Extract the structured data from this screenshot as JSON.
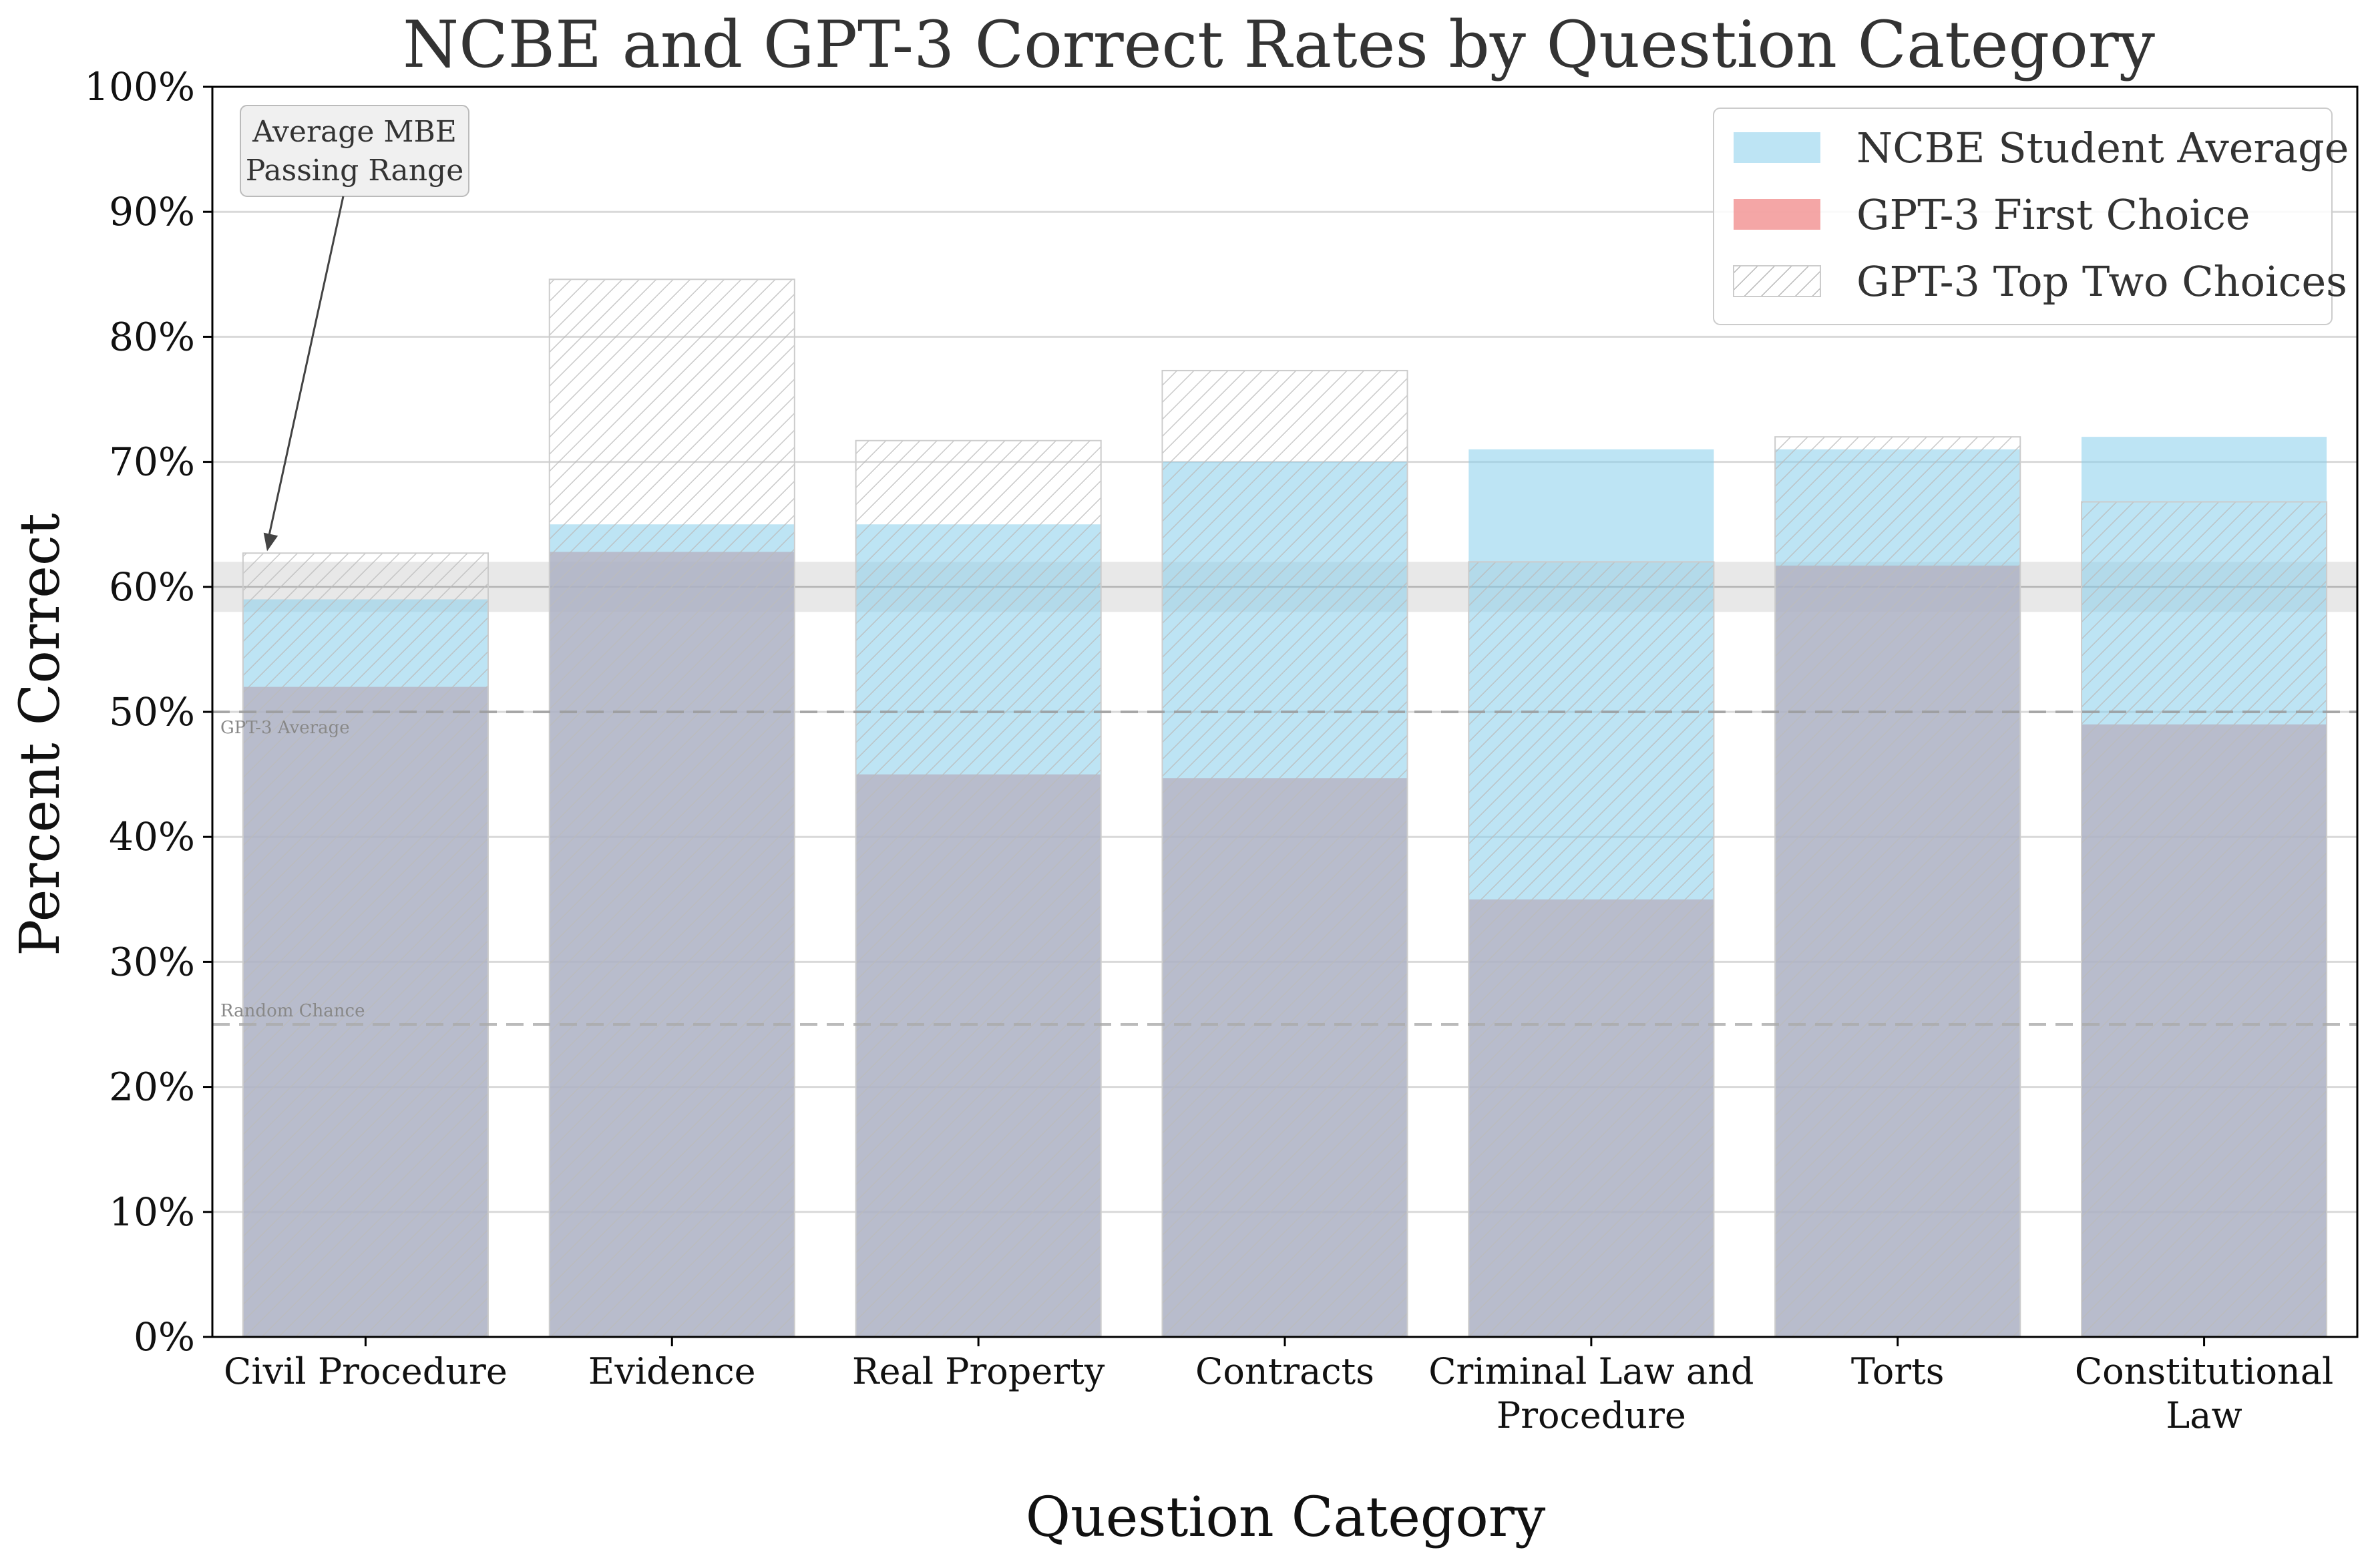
{
  "chart_data": {
    "type": "bar",
    "title": "NCBE and GPT-3 Correct Rates by Question Category",
    "xlabel": "Question Category",
    "ylabel": "Percent Correct",
    "ylim": [
      0,
      100
    ],
    "yticks": [
      "0%",
      "10%",
      "20%",
      "30%",
      "40%",
      "50%",
      "60%",
      "70%",
      "80%",
      "90%",
      "100%"
    ],
    "grid": true,
    "categories": [
      [
        "Civil Procedure"
      ],
      [
        "Evidence"
      ],
      [
        "Real Property"
      ],
      [
        "Contracts"
      ],
      [
        "Criminal Law and",
        "Procedure"
      ],
      [
        "Torts"
      ],
      [
        "Constitutional",
        "Law"
      ]
    ],
    "series": [
      {
        "name": "NCBE Student Average",
        "color": "#87CEEB",
        "values": [
          59,
          65,
          65,
          70,
          71,
          71,
          72
        ]
      },
      {
        "name": "GPT-3 First Choice",
        "color": "#F08080",
        "values": [
          52,
          62.8,
          45,
          44.7,
          35,
          61.7,
          49
        ]
      },
      {
        "name": "GPT-3 Top Two Choices",
        "color": "#ffffff",
        "hatch": true,
        "values": [
          62.7,
          84.6,
          71.7,
          77.3,
          62,
          72,
          66.8
        ]
      }
    ],
    "passing_range": {
      "min": 58,
      "max": 62,
      "mid": 60
    },
    "reference_lines": [
      {
        "label": "GPT-3 Average",
        "value": 50
      },
      {
        "label": "Random Chance",
        "value": 25
      }
    ],
    "annotation": {
      "lines": [
        "Average MBE",
        "Passing Range"
      ],
      "points_to": 62
    },
    "legend_position": "top-right"
  }
}
